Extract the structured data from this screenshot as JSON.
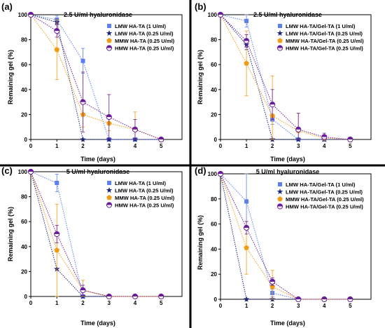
{
  "figure": {
    "colors": {
      "divider": "#000000",
      "axis": "#000000"
    }
  },
  "chart_data": [
    {
      "type": "line",
      "panel_label": "(a)",
      "title": "2.5 U/ml hyaluronidase",
      "xlabel": "Time (days)",
      "ylabel": "Remaining gel (%)",
      "xlim": [
        0,
        5.8
      ],
      "ylim": [
        0,
        100
      ],
      "xticks": [
        0,
        1,
        2,
        3,
        4,
        5
      ],
      "yticks": [
        0,
        20,
        40,
        60,
        80,
        100
      ],
      "legend_position": "top-right",
      "series": [
        {
          "name": "LMW HA-TA (1 U/ml)",
          "color": "#5b7ff0",
          "marker": "square",
          "x": [
            0,
            1,
            2,
            3,
            4,
            5
          ],
          "y": [
            100,
            96,
            63,
            0,
            0,
            0
          ],
          "err": [
            0,
            3,
            10,
            0,
            0,
            0
          ]
        },
        {
          "name": "LMW HA-TA (0.25 U/ml)",
          "color": "#1a237e",
          "marker": "star",
          "x": [
            0,
            1,
            2,
            3,
            4,
            5
          ],
          "y": [
            100,
            94,
            0,
            0,
            0,
            0
          ],
          "err": [
            0,
            2,
            0,
            0,
            0,
            0
          ]
        },
        {
          "name": "MMW HA-TA (0.25 U/ml)",
          "color": "#f39c12",
          "marker": "pentagon",
          "x": [
            0,
            1,
            2,
            3,
            4,
            5
          ],
          "y": [
            100,
            72,
            20,
            13,
            8,
            0
          ],
          "err": [
            0,
            24,
            10,
            6,
            14,
            0
          ]
        },
        {
          "name": "HMW HA-TA (0.25 U/ml)",
          "color": "#6a1b9a",
          "marker": "halfcircle",
          "x": [
            0,
            1,
            2,
            3,
            4,
            5
          ],
          "y": [
            100,
            87,
            30,
            18,
            8,
            0
          ],
          "err": [
            0,
            5,
            24,
            18,
            8,
            0
          ]
        }
      ]
    },
    {
      "type": "line",
      "panel_label": "(b)",
      "title": "2.5 U/ml hyaluronidase",
      "xlabel": "Time (days)",
      "ylabel": "Remaining gel (%)",
      "xlim": [
        0,
        5.8
      ],
      "ylim": [
        0,
        100
      ],
      "xticks": [
        0,
        1,
        2,
        3,
        4,
        5
      ],
      "yticks": [
        0,
        20,
        40,
        60,
        80,
        100
      ],
      "legend_position": "top-right",
      "series": [
        {
          "name": "LMW HA-TA/Gel-TA (1 U/ml)",
          "color": "#5b7ff0",
          "marker": "square",
          "x": [
            0,
            1,
            2,
            3,
            4,
            5
          ],
          "y": [
            100,
            95,
            16,
            0,
            0,
            0
          ],
          "err": [
            0,
            5,
            4,
            0,
            0,
            0
          ]
        },
        {
          "name": "LMW HA-TA/Gel-TA (0.25 U/ml)",
          "color": "#1a237e",
          "marker": "star",
          "x": [
            0,
            1,
            2,
            3,
            4,
            5
          ],
          "y": [
            100,
            76,
            0,
            0,
            0,
            0
          ],
          "err": [
            0,
            4,
            0,
            0,
            0,
            0
          ]
        },
        {
          "name": "MMW HA-TA/Gel-TA (0.25 U/ml)",
          "color": "#f39c12",
          "marker": "pentagon",
          "x": [
            0,
            1,
            2,
            3,
            4,
            5
          ],
          "y": [
            100,
            61,
            19,
            7,
            1,
            0
          ],
          "err": [
            0,
            26,
            32,
            14,
            2,
            0
          ]
        },
        {
          "name": "HMW HA-TA/Gel-TA (0.25 U/ml)",
          "color": "#6a1b9a",
          "marker": "halfcircle",
          "x": [
            0,
            1,
            2,
            3,
            4,
            5
          ],
          "y": [
            100,
            79,
            28,
            8,
            2,
            0
          ],
          "err": [
            0,
            5,
            12,
            13,
            3,
            0
          ]
        }
      ]
    },
    {
      "type": "line",
      "panel_label": "(c)",
      "title": "5 U/ml hyaluronidase",
      "xlabel": "Time (days)",
      "ylabel": "Remaining gel (%)",
      "xlim": [
        0,
        5.8
      ],
      "ylim": [
        0,
        100
      ],
      "xticks": [
        0,
        1,
        2,
        3,
        4,
        5
      ],
      "yticks": [
        0,
        20,
        40,
        60,
        80,
        100
      ],
      "legend_position": "top-right",
      "series": [
        {
          "name": "LMW HA-TA (1 U/ml)",
          "color": "#5b7ff0",
          "marker": "square",
          "x": [
            0,
            1,
            2,
            3,
            4,
            5
          ],
          "y": [
            100,
            91,
            0,
            0,
            0,
            0
          ],
          "err": [
            0,
            7,
            0,
            0,
            0,
            0
          ]
        },
        {
          "name": "LMW HA-TA (0.25 U/ml)",
          "color": "#1a237e",
          "marker": "star",
          "x": [
            0,
            1,
            2,
            3,
            4,
            5
          ],
          "y": [
            100,
            22,
            0,
            0,
            0,
            0
          ],
          "err": [
            0,
            0,
            0,
            0,
            0,
            0
          ]
        },
        {
          "name": "MMW HA-TA (0.25 U/ml)",
          "color": "#f39c12",
          "marker": "pentagon",
          "x": [
            0,
            1,
            2,
            3,
            4,
            5
          ],
          "y": [
            100,
            37,
            5,
            0,
            0,
            0
          ],
          "err": [
            0,
            37,
            8,
            0,
            0,
            0
          ]
        },
        {
          "name": "HMW HA-TA (0.25 U/ml)",
          "color": "#6a1b9a",
          "marker": "halfcircle",
          "x": [
            0,
            1,
            2,
            3,
            4,
            5
          ],
          "y": [
            100,
            50,
            5,
            0,
            0,
            0
          ],
          "err": [
            0,
            7,
            4,
            0,
            0,
            0
          ]
        }
      ]
    },
    {
      "type": "line",
      "panel_label": "(d)",
      "title": "5 U/ml hyaluronidase",
      "xlabel": "Time (days)",
      "ylabel": "Remaining gel (%)",
      "xlim": [
        0,
        5.8
      ],
      "ylim": [
        0,
        100
      ],
      "xticks": [
        0,
        1,
        2,
        3,
        4,
        5
      ],
      "yticks": [
        0,
        20,
        40,
        60,
        80,
        100
      ],
      "legend_position": "top-right",
      "series": [
        {
          "name": "LMW HA-TA/Gel-TA (1 U/ml)",
          "color": "#5b7ff0",
          "marker": "square",
          "x": [
            0,
            1,
            2,
            3,
            4,
            5
          ],
          "y": [
            100,
            78,
            5,
            0,
            0,
            0
          ],
          "err": [
            0,
            22,
            3,
            0,
            0,
            0
          ]
        },
        {
          "name": "LMW HA-TA/Gel-TA (0.25 U/ml)",
          "color": "#1a237e",
          "marker": "star",
          "x": [
            0,
            1,
            2,
            3,
            4,
            5
          ],
          "y": [
            100,
            0,
            0,
            0,
            0,
            0
          ],
          "err": [
            0,
            0,
            0,
            0,
            0,
            0
          ]
        },
        {
          "name": "MMW HA-TA/Gel-TA (0.25 U/ml)",
          "color": "#f39c12",
          "marker": "pentagon",
          "x": [
            0,
            1,
            2,
            3,
            4,
            5
          ],
          "y": [
            100,
            41,
            10,
            0,
            0,
            0
          ],
          "err": [
            0,
            21,
            13,
            0,
            0,
            0
          ]
        },
        {
          "name": "HMW HA-TA/Gel-TA (0.25 U/ml)",
          "color": "#6a1b9a",
          "marker": "halfcircle",
          "x": [
            0,
            1,
            2,
            3,
            4,
            5
          ],
          "y": [
            100,
            57,
            14,
            0,
            0,
            0
          ],
          "err": [
            0,
            5,
            3,
            0,
            0,
            0
          ]
        }
      ]
    }
  ]
}
